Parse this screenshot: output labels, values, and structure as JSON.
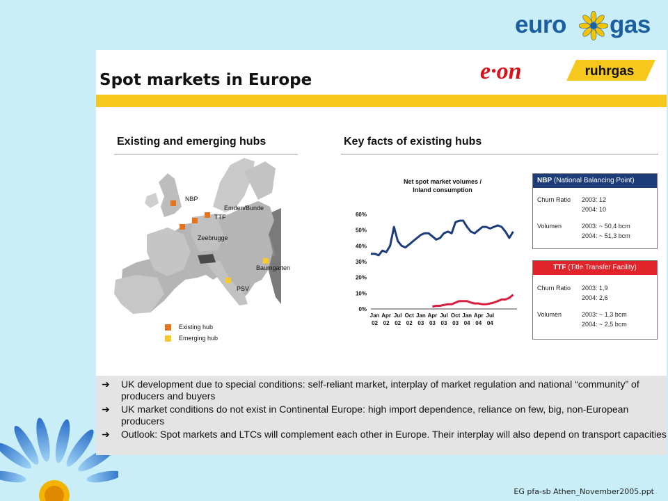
{
  "logo": {
    "left": "euro",
    "right": "gas"
  },
  "slide": {
    "title": "Spot markets in Europe",
    "brand_eon": "e·on",
    "brand_ruhrgas": "ruhrgas",
    "left_heading": "Existing and emerging hubs",
    "right_heading": "Key facts of existing hubs",
    "map": {
      "labels": [
        "NBP",
        "Emden/Bunde",
        "TTF",
        "Zeebrugge",
        "Baumgarten",
        "PSV"
      ],
      "legend": [
        "Existing hub",
        "Emerging hub"
      ],
      "colors": {
        "existing": "#e8731e",
        "emerging": "#f8c830"
      }
    },
    "chart_data": {
      "type": "line",
      "title": "Net spot market volumes / Inland consumption",
      "ylabel": "",
      "ylim": [
        0,
        60
      ],
      "yticks": [
        "60%",
        "50%",
        "40%",
        "30%",
        "20%",
        "10%",
        "0%"
      ],
      "xticks": [
        "Jan 02",
        "Apr 02",
        "Jul 02",
        "Oct 02",
        "Jan 03",
        "Apr 03",
        "Jul 03",
        "Oct 03",
        "Jan 04",
        "Apr 04",
        "Jul 04"
      ],
      "series": [
        {
          "name": "NBP",
          "color": "#1d3d7a",
          "x": [
            0,
            1,
            2,
            3,
            4,
            5,
            6,
            7,
            8,
            9,
            10,
            11,
            12,
            13,
            14,
            15,
            16,
            17,
            18,
            19,
            20,
            21,
            22,
            23,
            24,
            25,
            26,
            27,
            28,
            29,
            30,
            31,
            32,
            33,
            34,
            35,
            36,
            37,
            38,
            39,
            40,
            41,
            42,
            43,
            44,
            45,
            46,
            47,
            48,
            49,
            50
          ],
          "values": [
            35,
            35,
            34,
            37,
            36,
            40,
            52,
            43,
            40,
            39,
            41,
            43,
            45,
            47,
            48,
            48,
            46,
            44,
            45,
            48,
            49,
            48,
            55,
            56,
            56,
            52,
            49,
            48,
            50,
            52,
            52,
            51,
            52,
            53,
            52,
            49,
            45,
            49,
            null,
            null,
            null,
            null,
            null,
            null,
            null,
            null,
            null,
            null,
            null,
            null,
            null
          ]
        },
        {
          "name": "TTF",
          "color": "#d81e3e",
          "x": [
            16,
            17,
            18,
            19,
            20,
            21,
            22,
            23,
            24,
            25,
            26,
            27,
            28,
            29,
            30,
            31,
            32,
            33,
            34,
            35,
            36,
            37
          ],
          "values": [
            1.5,
            2,
            2,
            2.5,
            3,
            3,
            4,
            5,
            5,
            5,
            4,
            3.5,
            3.5,
            3,
            3,
            3.5,
            4,
            5,
            6,
            6,
            7,
            9
          ]
        }
      ]
    },
    "nbp_box": {
      "header_bold": "NBP",
      "header_rest": "(National Balancing Point)",
      "header_color": "#1d3d7a",
      "churn_label": "Churn Ratio",
      "churn_2003": "2003:  12",
      "churn_2004": "2004:  10",
      "vol_label": "Volumen",
      "vol_2003": "2003:  ~ 50,4  bcm",
      "vol_2004": "2004:  ~ 51,3  bcm"
    },
    "ttf_box": {
      "header_bold": "TTF",
      "header_rest": "(Title Transfer Facility)",
      "header_color": "#e0242a",
      "churn_label": "Churn Ratio",
      "churn_2003": "2003:  1,9",
      "churn_2004": "2004:  2,6",
      "vol_label": "Volumen",
      "vol_2003": "2003:  ~ 1,3  bcm",
      "vol_2004": "2004:  ~ 2,5  bcm"
    },
    "bullets": [
      "UK development due to special conditions: self-reliant market, interplay of market regulation and national “community” of producers and buyers",
      "UK market conditions do not exist in Continental Europe: high import dependence, reliance on few, big, non-European producers",
      "Outlook: Spot markets and LTCs will complement each other in Europe. Their interplay will also depend on transport capacities"
    ]
  },
  "footer": "EG pfa-sb Athen_November2005.ppt"
}
